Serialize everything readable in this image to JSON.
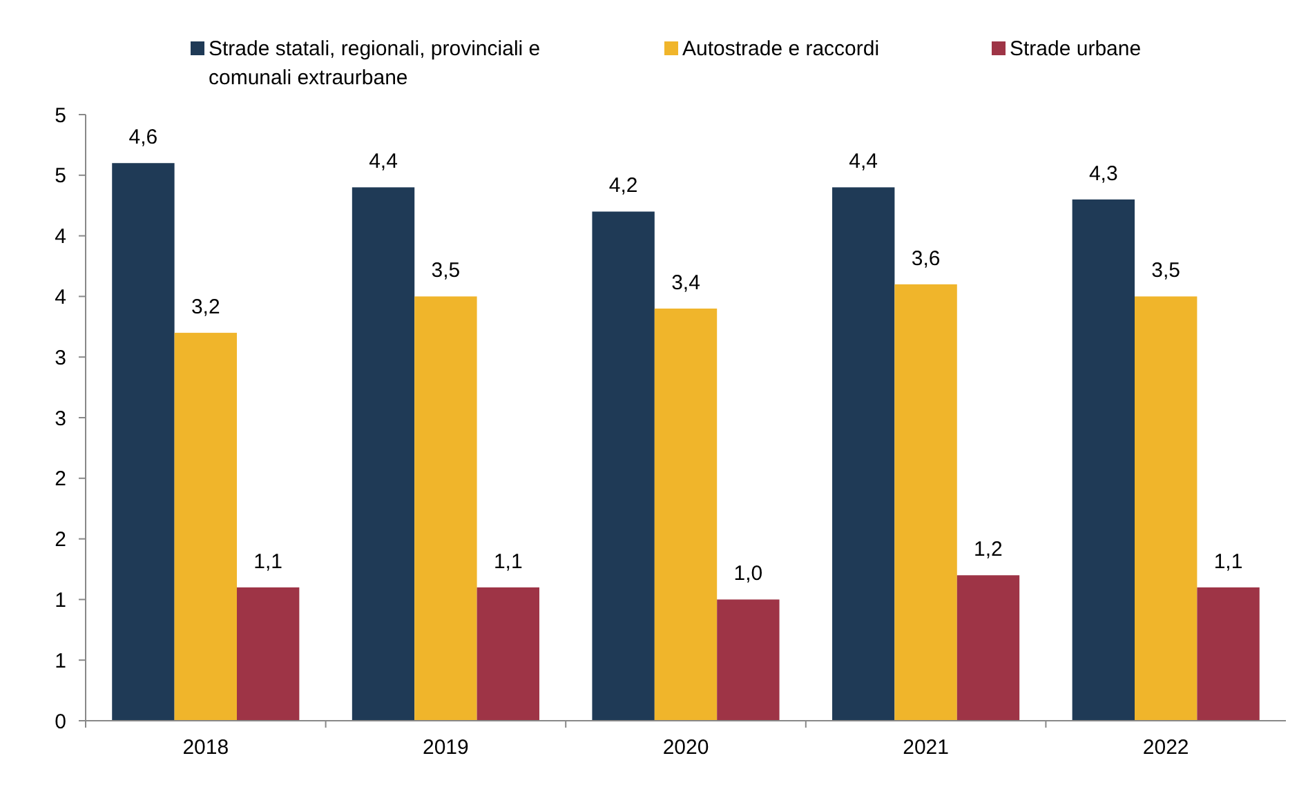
{
  "chart_data": {
    "type": "bar",
    "categories": [
      "2018",
      "2019",
      "2020",
      "2021",
      "2022"
    ],
    "series": [
      {
        "name": "Strade statali, regionali, provinciali e comunali extraurbane",
        "color": "#1f3a56",
        "values": [
          4.6,
          4.4,
          4.2,
          4.4,
          4.3
        ],
        "value_labels": [
          "4,6",
          "4,4",
          "4,2",
          "4,4",
          "4,3"
        ]
      },
      {
        "name": "Autostrade e raccordi",
        "color": "#f0b52b",
        "values": [
          3.2,
          3.5,
          3.4,
          3.6,
          3.5
        ],
        "value_labels": [
          "3,2",
          "3,5",
          "3,4",
          "3,6",
          "3,5"
        ]
      },
      {
        "name": "Strade urbane",
        "color": "#9e3446",
        "values": [
          1.1,
          1.1,
          1.0,
          1.2,
          1.1
        ],
        "value_labels": [
          "1,1",
          "1,1",
          "1,0",
          "1,2",
          "1,1"
        ]
      }
    ],
    "ylim": [
      0,
      5
    ],
    "yticks": [
      0,
      {
        "value": 0.5,
        "label": "1"
      },
      1,
      {
        "value": 1.5,
        "label": "2"
      },
      2,
      {
        "value": 2.5,
        "label": "3"
      },
      3,
      {
        "value": 3.5,
        "label": "4"
      },
      4,
      {
        "value": 4.5,
        "label": "5"
      },
      5
    ],
    "legend": "top",
    "grid": false
  }
}
